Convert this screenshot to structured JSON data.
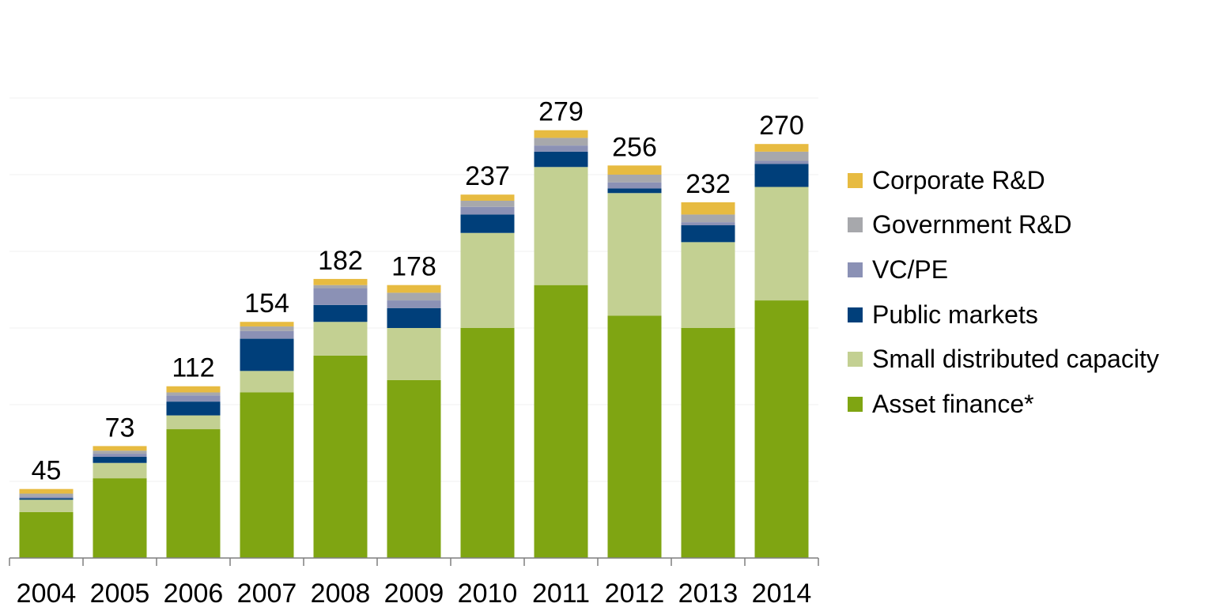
{
  "chart_data": {
    "type": "bar",
    "stacked": true,
    "categories": [
      "2004",
      "2005",
      "2006",
      "2007",
      "2008",
      "2009",
      "2010",
      "2011",
      "2012",
      "2013",
      "2014"
    ],
    "totals": [
      45,
      73,
      112,
      154,
      182,
      178,
      237,
      279,
      256,
      232,
      270
    ],
    "series": [
      {
        "name": "Asset finance*",
        "color": "#7fa512",
        "values": [
          30,
          52,
          84,
          108,
          132,
          116,
          150,
          178,
          158,
          150,
          168
        ]
      },
      {
        "name": "Small distributed capacity",
        "color": "#c3d092",
        "values": [
          8,
          10,
          9,
          14,
          22,
          34,
          62,
          77,
          80,
          56,
          74
        ]
      },
      {
        "name": "Public markets",
        "color": "#003f7a",
        "values": [
          1,
          4,
          9,
          21,
          11,
          13,
          12,
          10,
          3,
          11,
          15
        ]
      },
      {
        "name": "VC/PE",
        "color": "#8b91b5",
        "values": [
          1,
          2,
          4,
          5,
          11,
          5,
          5,
          4,
          4,
          2,
          2
        ]
      },
      {
        "name": "Government R&D",
        "color": "#a7a8ac",
        "values": [
          2,
          2,
          2,
          3,
          2,
          5,
          4,
          5,
          5,
          5,
          6
        ]
      },
      {
        "name": "Corporate R&D",
        "color": "#e7bb41",
        "values": [
          3,
          3,
          4,
          3,
          4,
          5,
          4,
          5,
          6,
          8,
          5
        ]
      }
    ],
    "ylim": [
      0,
      300
    ],
    "grid": true,
    "legend_position": "right"
  }
}
